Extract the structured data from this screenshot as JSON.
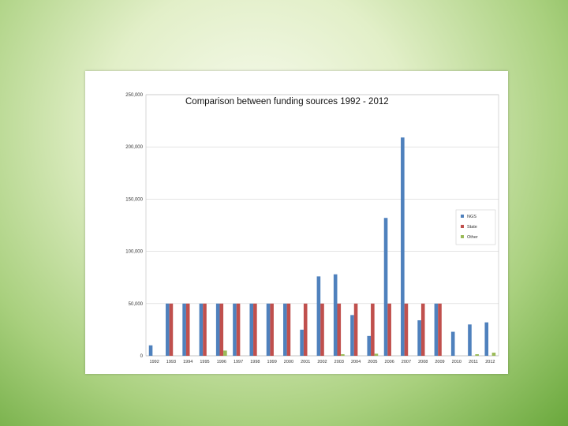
{
  "chart_data": {
    "type": "bar",
    "title": "Comparison between funding sources 1992 - 2012",
    "xlabel": "",
    "ylabel": "",
    "ylim": [
      0,
      250000
    ],
    "yticks": [
      0,
      50000,
      100000,
      150000,
      200000,
      250000
    ],
    "ytick_labels": [
      "0",
      "50,000",
      "100,000",
      "150,000",
      "200,000",
      "250,000"
    ],
    "grid": true,
    "legend_position": "right",
    "categories": [
      "1992",
      "1993",
      "1994",
      "1995",
      "1996",
      "1997",
      "1998",
      "1999",
      "2000",
      "2001",
      "2002",
      "2003",
      "2004",
      "2005",
      "2006",
      "2007",
      "2008",
      "2009",
      "2010",
      "2011",
      "2012"
    ],
    "series": [
      {
        "name": "NGS",
        "color": "#4f81bd",
        "values": [
          10000,
          50000,
          50000,
          50000,
          50000,
          50000,
          50000,
          50000,
          50000,
          25000,
          76000,
          78000,
          39000,
          19000,
          132000,
          209000,
          34000,
          50000,
          23000,
          30000,
          32000
        ]
      },
      {
        "name": "State",
        "color": "#c0504d",
        "values": [
          0,
          50000,
          50000,
          50000,
          50000,
          50000,
          50000,
          50000,
          50000,
          50000,
          50000,
          50000,
          50000,
          50000,
          50000,
          50000,
          50000,
          50000,
          0,
          0,
          0
        ]
      },
      {
        "name": "Other",
        "color": "#9bbb59",
        "values": [
          0,
          0,
          0,
          0,
          5000,
          0,
          0,
          0,
          0,
          0,
          0,
          1500,
          0,
          2000,
          0,
          0,
          0,
          0,
          0,
          1500,
          3000
        ]
      }
    ]
  }
}
